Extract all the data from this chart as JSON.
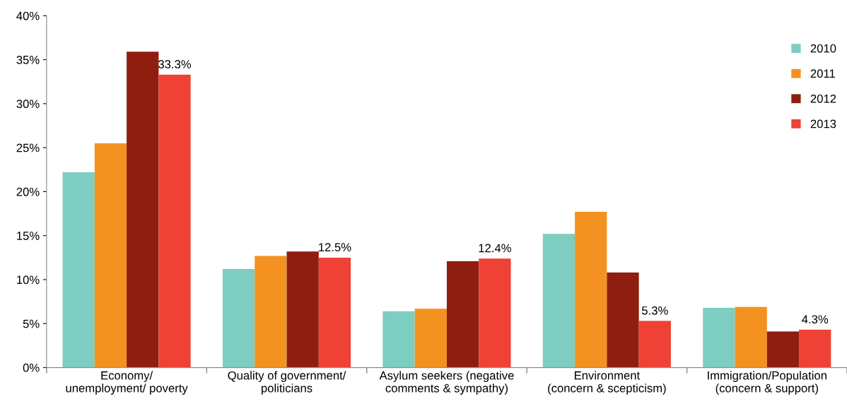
{
  "chart_data": {
    "type": "bar",
    "categories": [
      "Economy/\nunemployment/ poverty",
      "Quality of government/\npoliticians",
      "Asylum seekers (negative\ncomments & sympathy)",
      "Environment\n(concern & scepticism)",
      "Immigration/Population\n(concern & support)"
    ],
    "series": [
      {
        "name": "2010",
        "color": "#7ecdc1",
        "values": [
          22.2,
          11.2,
          6.4,
          15.2,
          6.8
        ]
      },
      {
        "name": "2011",
        "color": "#f39221",
        "values": [
          25.5,
          12.7,
          6.7,
          17.7,
          6.9
        ]
      },
      {
        "name": "2012",
        "color": "#8f1d10",
        "values": [
          35.9,
          13.2,
          12.1,
          10.8,
          4.1
        ]
      },
      {
        "name": "2013",
        "color": "#ef4135",
        "values": [
          33.3,
          12.5,
          12.4,
          5.3,
          4.3
        ],
        "value_labels": [
          "33.3%",
          "12.5%",
          "12.4%",
          "5.3%",
          "4.3%"
        ]
      }
    ],
    "ylim": [
      0,
      40
    ],
    "yticks": [
      {
        "value": 0,
        "label": "0%"
      },
      {
        "value": 5,
        "label": "5%"
      },
      {
        "value": 10,
        "label": "10%"
      },
      {
        "value": 15,
        "label": "15%"
      },
      {
        "value": 20,
        "label": "20%"
      },
      {
        "value": 25,
        "label": "25%"
      },
      {
        "value": 30,
        "label": "30%"
      },
      {
        "value": 35,
        "label": "35%"
      },
      {
        "value": 40,
        "label": "40%"
      }
    ],
    "grid": false,
    "legend": "top right"
  }
}
